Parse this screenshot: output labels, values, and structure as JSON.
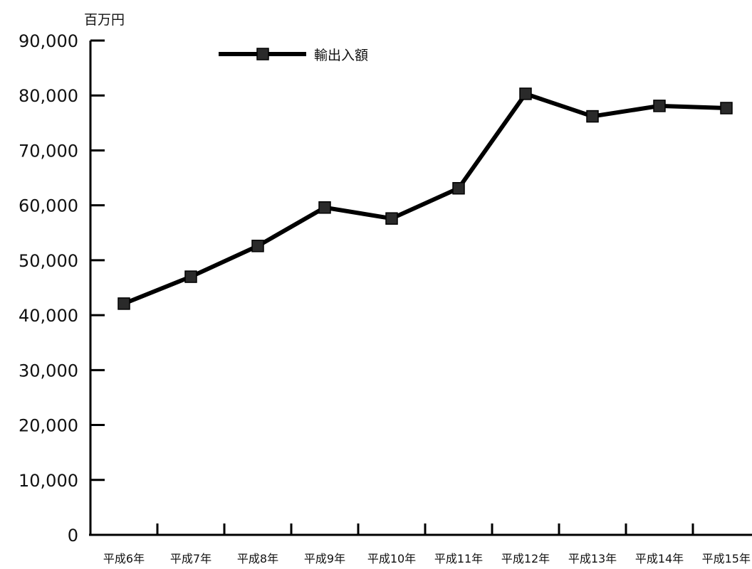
{
  "chart_data": {
    "type": "line",
    "title": "",
    "xlabel": "",
    "ylabel": "百万円",
    "ylim": [
      0,
      90000
    ],
    "yticks": [
      0,
      10000,
      20000,
      30000,
      40000,
      50000,
      60000,
      70000,
      80000,
      90000
    ],
    "ytick_labels": [
      "0",
      "10,000",
      "20,000",
      "30,000",
      "40,000",
      "50,000",
      "60,000",
      "70,000",
      "80,000",
      "90,000"
    ],
    "categories": [
      "平成6年",
      "平成7年",
      "平成8年",
      "平成9年",
      "平成10年",
      "平成11年",
      "平成12年",
      "平成13年",
      "平成14年",
      "平成15年"
    ],
    "series": [
      {
        "name": "輸出入額",
        "values": [
          42100,
          47000,
          52600,
          59600,
          57600,
          63100,
          80300,
          76200,
          78100,
          77700
        ],
        "color": "#000000",
        "marker": "square",
        "marker_color": "#2a2a2a"
      }
    ],
    "legend": {
      "placement": "top-left",
      "entries": [
        "輸出入額"
      ]
    },
    "grid": false
  }
}
